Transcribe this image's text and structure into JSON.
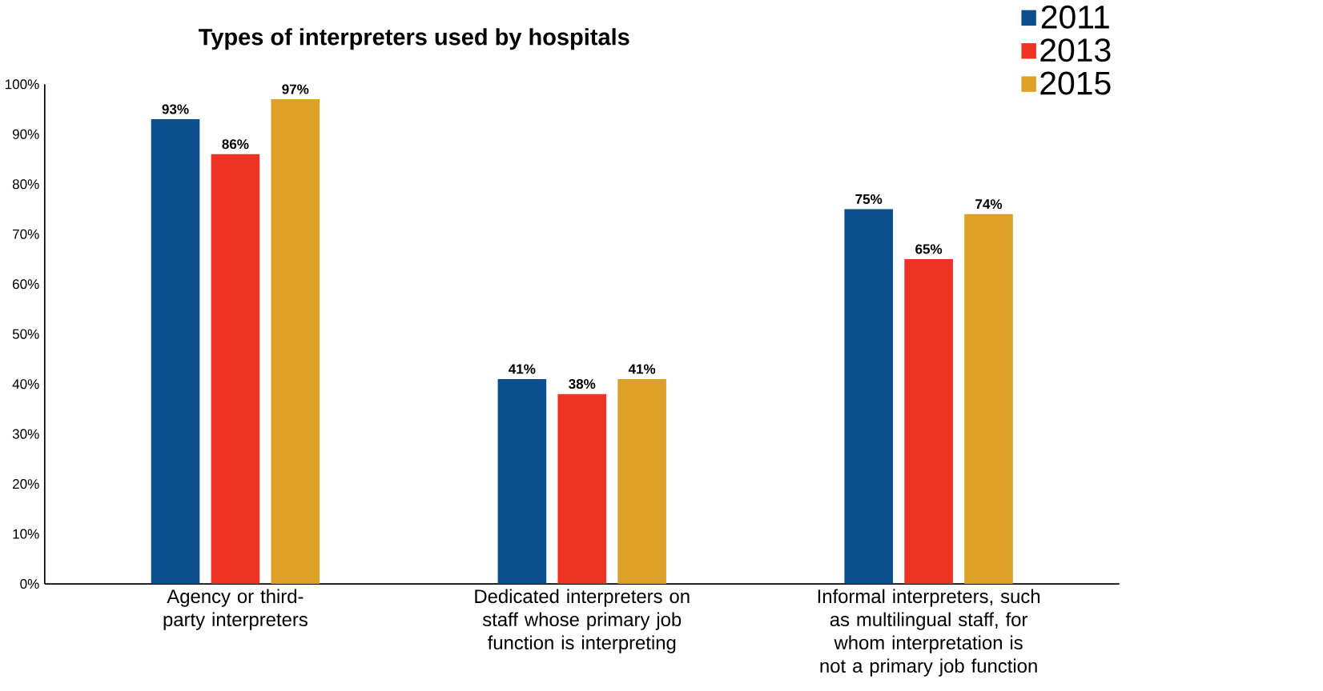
{
  "chart_data": {
    "type": "bar",
    "title": "Types of interpreters used by hospitals",
    "categories": [
      "Agency or third-party interpreters",
      "Dedicated interpreters on staff whose primary job function is interpreting",
      "Informal interpreters, such as multilingual staff, for whom interpretation is not a primary job function"
    ],
    "series": [
      {
        "name": "2011",
        "color": "#0c4f8e",
        "values": [
          93,
          41,
          75
        ],
        "value_labels": [
          "93%",
          "41%",
          "75%"
        ]
      },
      {
        "name": "2013",
        "color": "#ee3224",
        "values": [
          86,
          38,
          65
        ],
        "value_labels": [
          "86%",
          "38%",
          "65%"
        ]
      },
      {
        "name": "2015",
        "color": "#dea127",
        "values": [
          97,
          41,
          74
        ],
        "value_labels": [
          "97%",
          "41%",
          "74%"
        ]
      }
    ],
    "ylim": [
      0,
      100
    ],
    "yticks": [
      {
        "value": 0,
        "label": "0%"
      },
      {
        "value": 10,
        "label": "10%"
      },
      {
        "value": 20,
        "label": "20%"
      },
      {
        "value": 30,
        "label": "30%"
      },
      {
        "value": 40,
        "label": "40%"
      },
      {
        "value": 50,
        "label": "50%"
      },
      {
        "value": 60,
        "label": "60%"
      },
      {
        "value": 70,
        "label": "70%"
      },
      {
        "value": 80,
        "label": "80%"
      },
      {
        "value": 90,
        "label": "90%"
      },
      {
        "value": 100,
        "label": "100%"
      }
    ],
    "grid": false,
    "legend": "top right"
  }
}
